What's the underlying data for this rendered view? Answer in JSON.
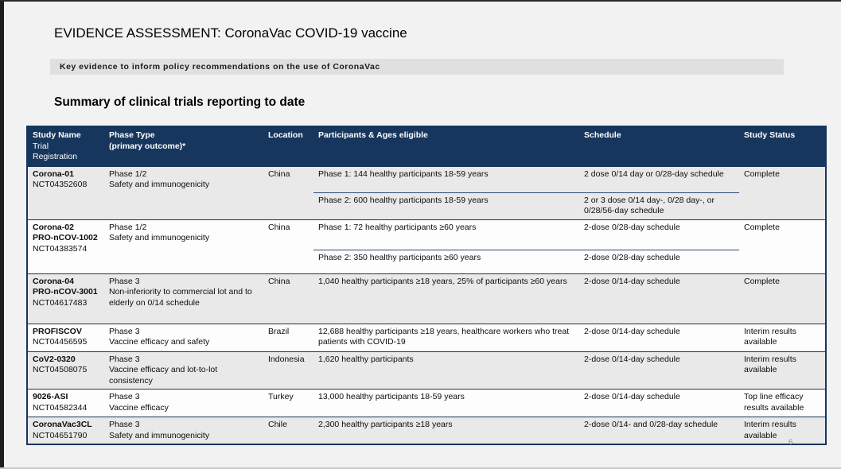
{
  "slide": {
    "title": "EVIDENCE ASSESSMENT: CoronaVac COVID-19 vaccine",
    "subtitle": "Key evidence to inform policy recommendations on the use of CoronaVac",
    "section_heading": "Summary of clinical trials reporting to date",
    "page_number": "6"
  },
  "colors": {
    "header_bg": "#17365d",
    "border": "#17365d",
    "row_shaded": "#e9e9e9",
    "row_plain": "#fdfdfd",
    "subtitle_bg": "#e0e0e0",
    "slide_bg": "#f2f2f2"
  },
  "table": {
    "headers": {
      "study_name": "Study Name",
      "study_name_sub": "Trial\nRegistration",
      "phase": "Phase Type",
      "phase_sub": "(primary outcome)*",
      "location": "Location",
      "participants": "Participants & Ages eligible",
      "schedule": "Schedule",
      "status": "Study Status"
    },
    "rows": [
      {
        "name": "Corona-01",
        "registration": "NCT04352608",
        "phase": "Phase 1/2",
        "outcome": "Safety and immunogenicity",
        "location": "China",
        "status": "Complete",
        "shaded": true,
        "sub_rows": [
          {
            "participants": "Phase 1: 144 healthy participants 18-59 years",
            "schedule": "2 dose 0/14 day or 0/28-day schedule"
          },
          {
            "participants": "Phase 2: 600 healthy participants 18-59 years",
            "schedule": "2 or 3 dose 0/14 day-, 0/28 day-, or 0/28/56-day schedule"
          }
        ]
      },
      {
        "name": "Corona-02\nPRO-nCOV-1002",
        "registration": "NCT04383574",
        "phase": "Phase 1/2",
        "outcome": "Safety and immunogenicity",
        "location": "China",
        "status": "Complete",
        "shaded": false,
        "sub_rows": [
          {
            "participants": "Phase 1: 72 healthy participants ≥60 years",
            "schedule": "2-dose 0/28-day schedule"
          },
          {
            "participants": "Phase 2: 350 healthy participants ≥60 years",
            "schedule": "2-dose 0/28-day schedule"
          }
        ]
      },
      {
        "name": "Corona-04\nPRO-nCOV-3001",
        "registration": "NCT04617483",
        "phase": "Phase 3",
        "outcome": "Non-inferiority to commercial lot and to elderly on 0/14 schedule",
        "location": "China",
        "status": "Complete",
        "shaded": true,
        "sub_rows": [
          {
            "participants": "1,040 healthy participants ≥18 years,  25% of participants ≥60 years",
            "schedule": "2-dose 0/14-day schedule"
          }
        ]
      },
      {
        "name": "PROFISCOV",
        "registration": "NCT04456595",
        "phase": "Phase 3",
        "outcome": "Vaccine efficacy and safety",
        "location": "Brazil",
        "status": "Interim results available",
        "shaded": false,
        "sub_rows": [
          {
            "participants": "12,688 healthy participants ≥18 years, healthcare workers who treat patients with COVID-19",
            "schedule": "2-dose 0/14-day schedule"
          }
        ]
      },
      {
        "name": "CoV2-0320",
        "registration": "NCT04508075",
        "phase": "Phase 3",
        "outcome": "Vaccine efficacy and lot-to-lot consistency",
        "location": "Indonesia",
        "status": "Interim results available",
        "shaded": true,
        "sub_rows": [
          {
            "participants": "1,620 healthy participants",
            "schedule": "2-dose 0/14-day schedule"
          }
        ]
      },
      {
        "name": "9026-ASI",
        "registration": "NCT04582344",
        "phase": "Phase 3",
        "outcome": "Vaccine efficacy",
        "location": "Turkey",
        "status": "Top line efficacy results available",
        "shaded": false,
        "sub_rows": [
          {
            "participants": "13,000 healthy participants 18-59 years",
            "schedule": "2-dose 0/14-day schedule"
          }
        ]
      },
      {
        "name": "CoronaVac3CL",
        "registration": "NCT04651790",
        "phase": "Phase 3",
        "outcome": "Safety and immunogenicity",
        "location": "Chile",
        "status": "Interim results available",
        "shaded": true,
        "sub_rows": [
          {
            "participants": "2,300 healthy participants ≥18 years",
            "schedule": "2-dose 0/14- and 0/28-day schedule"
          }
        ]
      }
    ]
  }
}
